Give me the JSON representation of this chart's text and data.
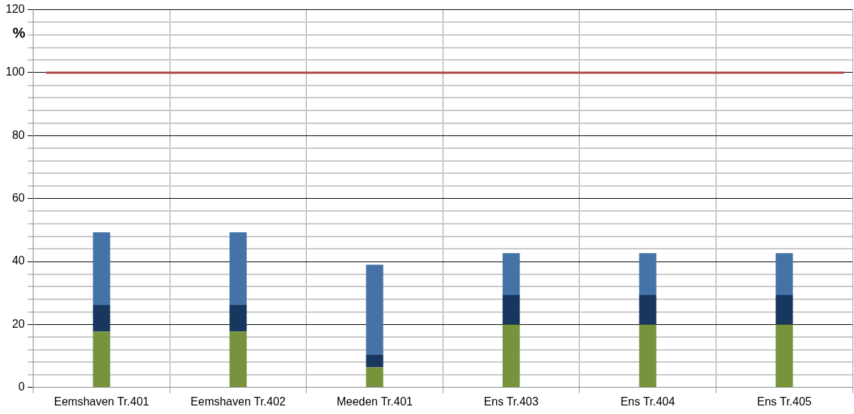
{
  "chart_data": {
    "type": "bar",
    "stacked": true,
    "ylabel": "%",
    "categories": [
      "Eemshaven Tr.401",
      "Eemshaven Tr.402",
      "Meeden Tr.401",
      "Ens Tr.403",
      "Ens Tr.404",
      "Ens Tr.405"
    ],
    "series": [
      {
        "color": "#77933c",
        "values": [
          17.8,
          17.8,
          6.4,
          20,
          20,
          20
        ]
      },
      {
        "color": "#17375e",
        "values": [
          8.4,
          8.4,
          4.1,
          9.4,
          9.4,
          9.4
        ]
      },
      {
        "color": "#4573a7",
        "values": [
          23.1,
          23.1,
          28.5,
          13.3,
          13.3,
          13.3
        ]
      }
    ],
    "ylim": [
      0,
      120
    ],
    "yticks": [
      0,
      {
        "value": 4,
        "label": null
      },
      {
        "value": 8,
        "label": null
      },
      {
        "value": 12,
        "label": null
      },
      {
        "value": 16,
        "label": null
      },
      20,
      {
        "value": 24,
        "label": null
      },
      {
        "value": 28,
        "label": null
      },
      {
        "value": 32,
        "label": null
      },
      {
        "value": 36,
        "label": null
      },
      40,
      {
        "value": 44,
        "label": null
      },
      {
        "value": 48,
        "label": null
      },
      {
        "value": 52,
        "label": null
      },
      {
        "value": 56,
        "label": null
      },
      60,
      {
        "value": 64,
        "label": null
      },
      {
        "value": 68,
        "label": null
      },
      {
        "value": 72,
        "label": null
      },
      {
        "value": 76,
        "label": null
      },
      80,
      {
        "value": 84,
        "label": null
      },
      {
        "value": 88,
        "label": null
      },
      {
        "value": 92,
        "label": null
      },
      {
        "value": 96,
        "label": null
      },
      100,
      {
        "value": 104,
        "label": null
      },
      {
        "value": 108,
        "label": null
      },
      {
        "value": 112,
        "label": null
      },
      {
        "value": 116,
        "label": null
      },
      120
    ],
    "ref_lines": [
      {
        "axis": "y",
        "value": 100,
        "color": "#b04540"
      }
    ],
    "grid": true,
    "legend": false
  }
}
